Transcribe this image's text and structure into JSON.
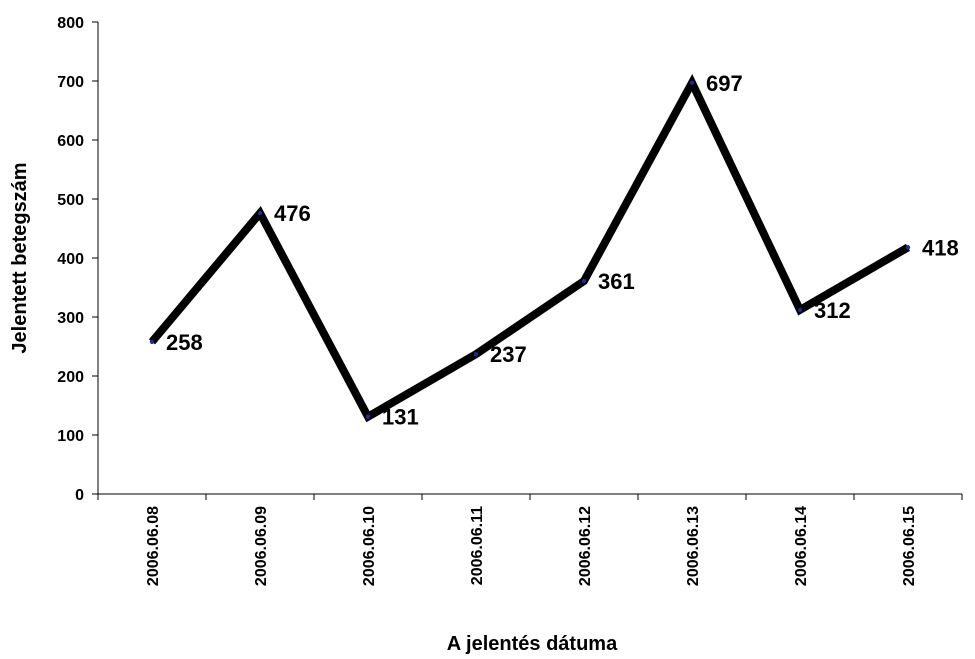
{
  "chart_data": {
    "type": "line",
    "title": "",
    "xlabel": "A jelentés dátuma",
    "ylabel": "Jelentett betegszám",
    "categories": [
      "2006.06.08",
      "2006.06.09",
      "2006.06.10",
      "2006.06.11",
      "2006.06.12",
      "2006.06.13",
      "2006.06.14",
      "2006.06.15"
    ],
    "series": [
      {
        "values": [
          258,
          476,
          131,
          237,
          361,
          697,
          312,
          418
        ]
      }
    ],
    "data_labels": [
      "258",
      "476",
      "131",
      "237",
      "361",
      "697",
      "312",
      "418"
    ],
    "ylim": [
      0,
      800
    ],
    "yticks": [
      "0",
      "100",
      "200",
      "300",
      "400",
      "500",
      "600",
      "700",
      "800"
    ],
    "grid": false,
    "legend": "none",
    "line_color": "#000000",
    "marker_color": "#1f2a8c"
  }
}
